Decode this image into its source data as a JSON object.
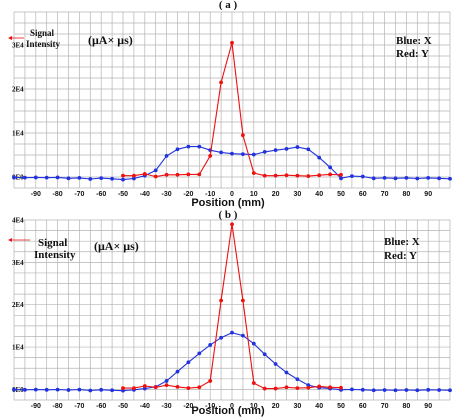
{
  "chart_data": [
    {
      "type": "line",
      "panel_label": "( a )",
      "xlabel": "Position (mm)",
      "ylabel_text": "Signal",
      "ylabel_text2": "Intensity",
      "ylabel_unit": "(μA× μs)",
      "legend": [
        "Blue: X",
        "Red: Y"
      ],
      "xlim": [
        -100,
        100
      ],
      "ylim": [
        -2500,
        37500
      ],
      "x_ticks": [
        -90,
        -80,
        -70,
        -60,
        -50,
        -40,
        -30,
        -20,
        -10,
        0,
        10,
        20,
        30,
        40,
        50,
        60,
        70,
        80,
        90
      ],
      "y_ticks": [
        0,
        10000,
        20000,
        30000
      ],
      "y_tick_labels": [
        "0E0",
        "1E4",
        "2E4",
        "3E4"
      ],
      "grid": true,
      "series": [
        {
          "color": "#2233dd",
          "x": [
            -100,
            -95,
            -90,
            -85,
            -80,
            -75,
            -70,
            -65,
            -60,
            -55,
            -50,
            -45,
            -40,
            -35,
            -30,
            -25,
            -20,
            -15,
            -10,
            -5,
            0,
            5,
            10,
            15,
            20,
            25,
            30,
            35,
            40,
            45,
            50,
            55,
            60,
            65,
            70,
            75,
            80,
            85,
            90,
            95,
            100
          ],
          "y": [
            -100,
            -150,
            -100,
            -150,
            -100,
            -300,
            -200,
            -450,
            -250,
            -400,
            -600,
            -350,
            300,
            1500,
            4800,
            6300,
            6900,
            6900,
            6100,
            5600,
            5300,
            5200,
            5100,
            5700,
            6100,
            6400,
            6800,
            6300,
            4400,
            2200,
            -300,
            200,
            100,
            -300,
            -200,
            -300,
            -200,
            -350,
            -200,
            -300,
            -400
          ]
        },
        {
          "color": "#ee1111",
          "x": [
            -50,
            -45,
            -40,
            -35,
            -30,
            -25,
            -20,
            -15,
            -10,
            -5,
            0,
            5,
            10,
            15,
            20,
            25,
            30,
            35,
            40,
            45,
            50
          ],
          "y": [
            300,
            300,
            700,
            100,
            500,
            500,
            600,
            600,
            4800,
            21500,
            30500,
            9500,
            900,
            300,
            300,
            400,
            300,
            200,
            400,
            600,
            500
          ]
        }
      ]
    },
    {
      "type": "line",
      "panel_label": "( b )",
      "xlabel": "Position (mm)",
      "ylabel_text": "Signal",
      "ylabel_text2": "Intensity",
      "ylabel_unit": "(μA× μs)",
      "legend": [
        "Blue: X",
        "Red: Y"
      ],
      "top_left_label": "4E4",
      "xlim": [
        -100,
        100
      ],
      "ylim": [
        -2500,
        40000
      ],
      "x_ticks": [
        -90,
        -80,
        -70,
        -60,
        -50,
        -40,
        -30,
        -20,
        -10,
        0,
        10,
        20,
        30,
        40,
        50,
        60,
        70,
        80,
        90
      ],
      "y_ticks": [
        0,
        10000,
        20000,
        30000,
        40000
      ],
      "y_tick_labels": [
        "0E0",
        "1E4",
        "2E4",
        "3E4",
        "4E4"
      ],
      "grid": true,
      "series": [
        {
          "color": "#2233dd",
          "x": [
            -100,
            -95,
            -90,
            -85,
            -80,
            -75,
            -70,
            -65,
            -60,
            -55,
            -50,
            -45,
            -40,
            -35,
            -30,
            -25,
            -20,
            -15,
            -10,
            -5,
            0,
            5,
            10,
            15,
            20,
            25,
            30,
            35,
            40,
            45,
            50,
            55,
            60,
            65,
            70,
            75,
            80,
            85,
            90,
            95,
            100
          ],
          "y": [
            -50,
            -100,
            -50,
            -100,
            -50,
            -150,
            -50,
            -250,
            -100,
            -200,
            -300,
            -100,
            200,
            600,
            2000,
            4200,
            6400,
            8500,
            10500,
            12200,
            13400,
            12700,
            10800,
            8300,
            6000,
            4000,
            2400,
            1000,
            400,
            200,
            -100,
            0,
            -100,
            -200,
            -150,
            -200,
            -150,
            -200,
            -100,
            -150,
            -200
          ]
        },
        {
          "color": "#ee1111",
          "x": [
            -50,
            -45,
            -40,
            -35,
            -30,
            -25,
            -20,
            -15,
            -10,
            -5,
            0,
            5,
            10,
            15,
            20,
            25,
            30,
            35,
            40,
            45,
            50
          ],
          "y": [
            300,
            300,
            800,
            500,
            1000,
            600,
            300,
            500,
            2000,
            21000,
            39000,
            21000,
            1500,
            200,
            200,
            500,
            300,
            400,
            700,
            500,
            400
          ]
        }
      ]
    }
  ]
}
